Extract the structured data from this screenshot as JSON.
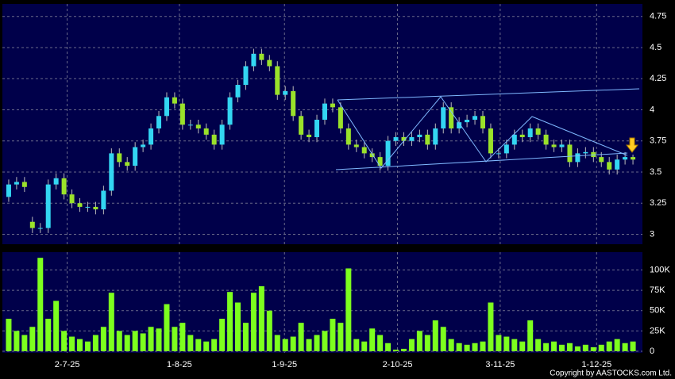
{
  "chart_data": [
    {
      "type": "candlestick",
      "up_color": "#33d6f2",
      "down_color": "#9ae22a",
      "grid": true,
      "ylim": [
        2.92,
        4.85
      ],
      "yticks": [
        3,
        3.25,
        3.5,
        3.75,
        4,
        4.25,
        4.5,
        4.75
      ],
      "xlim": [
        -0.8,
        80.2
      ],
      "open": [
        3.3,
        3.4,
        3.42,
        3.1,
        3.05,
        3.05,
        3.4,
        3.45,
        3.32,
        3.25,
        3.22,
        3.22,
        3.2,
        3.35,
        3.65,
        3.58,
        3.55,
        3.7,
        3.72,
        3.85,
        3.95,
        4.1,
        4.05,
        3.88,
        3.88,
        3.85,
        3.8,
        3.72,
        3.88,
        4.1,
        4.2,
        4.35,
        4.45,
        4.4,
        4.35,
        4.12,
        4.15,
        3.95,
        3.8,
        3.78,
        3.92,
        4.05,
        4.02,
        3.85,
        3.72,
        3.7,
        3.65,
        3.62,
        3.55,
        3.75,
        3.78,
        3.75,
        3.78,
        3.8,
        3.72,
        3.85,
        4.02,
        3.85,
        3.9,
        3.92,
        3.95,
        3.85,
        3.65,
        3.65,
        3.72,
        3.8,
        3.78,
        3.85,
        3.8,
        3.72,
        3.7,
        3.72,
        3.58,
        3.65,
        3.66,
        3.62,
        3.58,
        3.52,
        3.6,
        3.62
      ],
      "high": [
        3.44,
        3.46,
        3.46,
        3.14,
        3.09,
        3.44,
        3.49,
        3.49,
        3.36,
        3.29,
        3.26,
        3.26,
        3.39,
        3.69,
        3.69,
        3.62,
        3.74,
        3.76,
        3.89,
        3.99,
        4.14,
        4.14,
        4.09,
        3.92,
        3.92,
        3.89,
        3.84,
        3.92,
        4.14,
        4.24,
        4.39,
        4.49,
        4.49,
        4.44,
        4.39,
        4.19,
        4.19,
        3.99,
        3.84,
        3.96,
        4.09,
        4.09,
        4.06,
        3.89,
        3.76,
        3.74,
        3.69,
        3.66,
        3.79,
        3.82,
        3.82,
        3.82,
        3.84,
        3.84,
        3.89,
        4.06,
        4.06,
        3.94,
        3.96,
        3.99,
        3.99,
        3.89,
        3.69,
        3.76,
        3.84,
        3.84,
        3.89,
        3.89,
        3.84,
        3.76,
        3.76,
        3.76,
        3.69,
        3.7,
        3.7,
        3.66,
        3.62,
        3.64,
        3.66,
        3.64
      ],
      "low": [
        3.26,
        3.36,
        3.34,
        3.01,
        3.01,
        3.01,
        3.36,
        3.28,
        3.21,
        3.18,
        3.18,
        3.16,
        3.16,
        3.31,
        3.54,
        3.51,
        3.51,
        3.66,
        3.68,
        3.81,
        3.91,
        4.01,
        3.84,
        3.84,
        3.81,
        3.76,
        3.68,
        3.68,
        3.84,
        4.06,
        4.16,
        4.31,
        4.36,
        4.31,
        4.08,
        4.08,
        3.91,
        3.76,
        3.74,
        3.74,
        3.88,
        3.98,
        3.81,
        3.68,
        3.66,
        3.61,
        3.58,
        3.51,
        3.51,
        3.71,
        3.71,
        3.71,
        3.74,
        3.68,
        3.68,
        3.81,
        3.81,
        3.81,
        3.86,
        3.88,
        3.81,
        3.61,
        3.61,
        3.61,
        3.68,
        3.74,
        3.74,
        3.76,
        3.68,
        3.66,
        3.66,
        3.54,
        3.54,
        3.61,
        3.58,
        3.54,
        3.48,
        3.48,
        3.56,
        3.56
      ],
      "close": [
        3.4,
        3.42,
        3.38,
        3.05,
        3.05,
        3.4,
        3.45,
        3.32,
        3.25,
        3.22,
        3.22,
        3.2,
        3.35,
        3.65,
        3.58,
        3.55,
        3.7,
        3.72,
        3.85,
        3.95,
        4.1,
        4.05,
        3.88,
        3.88,
        3.85,
        3.8,
        3.72,
        3.88,
        4.1,
        4.2,
        4.35,
        4.45,
        4.4,
        4.35,
        4.12,
        4.15,
        3.95,
        3.8,
        3.78,
        3.92,
        4.05,
        4.02,
        3.85,
        3.72,
        3.7,
        3.65,
        3.62,
        3.55,
        3.75,
        3.78,
        3.75,
        3.78,
        3.8,
        3.72,
        3.85,
        4.02,
        3.85,
        3.9,
        3.92,
        3.95,
        3.85,
        3.65,
        3.65,
        3.72,
        3.8,
        3.78,
        3.85,
        3.8,
        3.72,
        3.7,
        3.72,
        3.58,
        3.65,
        3.66,
        3.62,
        3.58,
        3.52,
        3.6,
        3.62,
        3.6
      ]
    },
    {
      "type": "bar",
      "color": "#7dff1e",
      "grid": true,
      "xlim": [
        -0.8,
        80.2
      ],
      "ylim": [
        0,
        122000
      ],
      "yticks": [
        0,
        {
          "value": 25000,
          "label": "25K"
        },
        {
          "value": 50000,
          "label": "50K"
        },
        {
          "value": 75000,
          "label": "75K"
        },
        {
          "value": 100000,
          "label": "100K"
        }
      ],
      "xticks": [
        {
          "value": 7.4,
          "label": "2-7-25"
        },
        {
          "value": 21.6,
          "label": "1-8-25"
        },
        {
          "value": 34.9,
          "label": "1-9-25"
        },
        {
          "value": 49.2,
          "label": "2-10-25"
        },
        {
          "value": 62.2,
          "label": "3-11-25"
        },
        {
          "value": 74.4,
          "label": "1-12-25"
        }
      ],
      "values": [
        40000,
        25000,
        20000,
        30000,
        115000,
        40000,
        62000,
        25000,
        18000,
        15000,
        12000,
        20000,
        30000,
        72000,
        25000,
        20000,
        25000,
        22000,
        30000,
        28000,
        58000,
        30000,
        35000,
        20000,
        15000,
        12000,
        15000,
        40000,
        73000,
        60000,
        35000,
        72000,
        80000,
        50000,
        20000,
        15000,
        18000,
        35000,
        15000,
        20000,
        25000,
        40000,
        35000,
        102000,
        15000,
        12000,
        28000,
        20000,
        10000,
        2000,
        3000,
        15000,
        25000,
        20000,
        38000,
        30000,
        15000,
        10000,
        8000,
        10000,
        12000,
        60000,
        20000,
        18000,
        15000,
        12000,
        38000,
        15000,
        10000,
        12000,
        8000,
        10000,
        6000,
        8000,
        5000,
        8000,
        12000,
        15000,
        10000,
        12000
      ]
    }
  ],
  "copyright": "Copyright by AASTOCKS.com Ltd."
}
